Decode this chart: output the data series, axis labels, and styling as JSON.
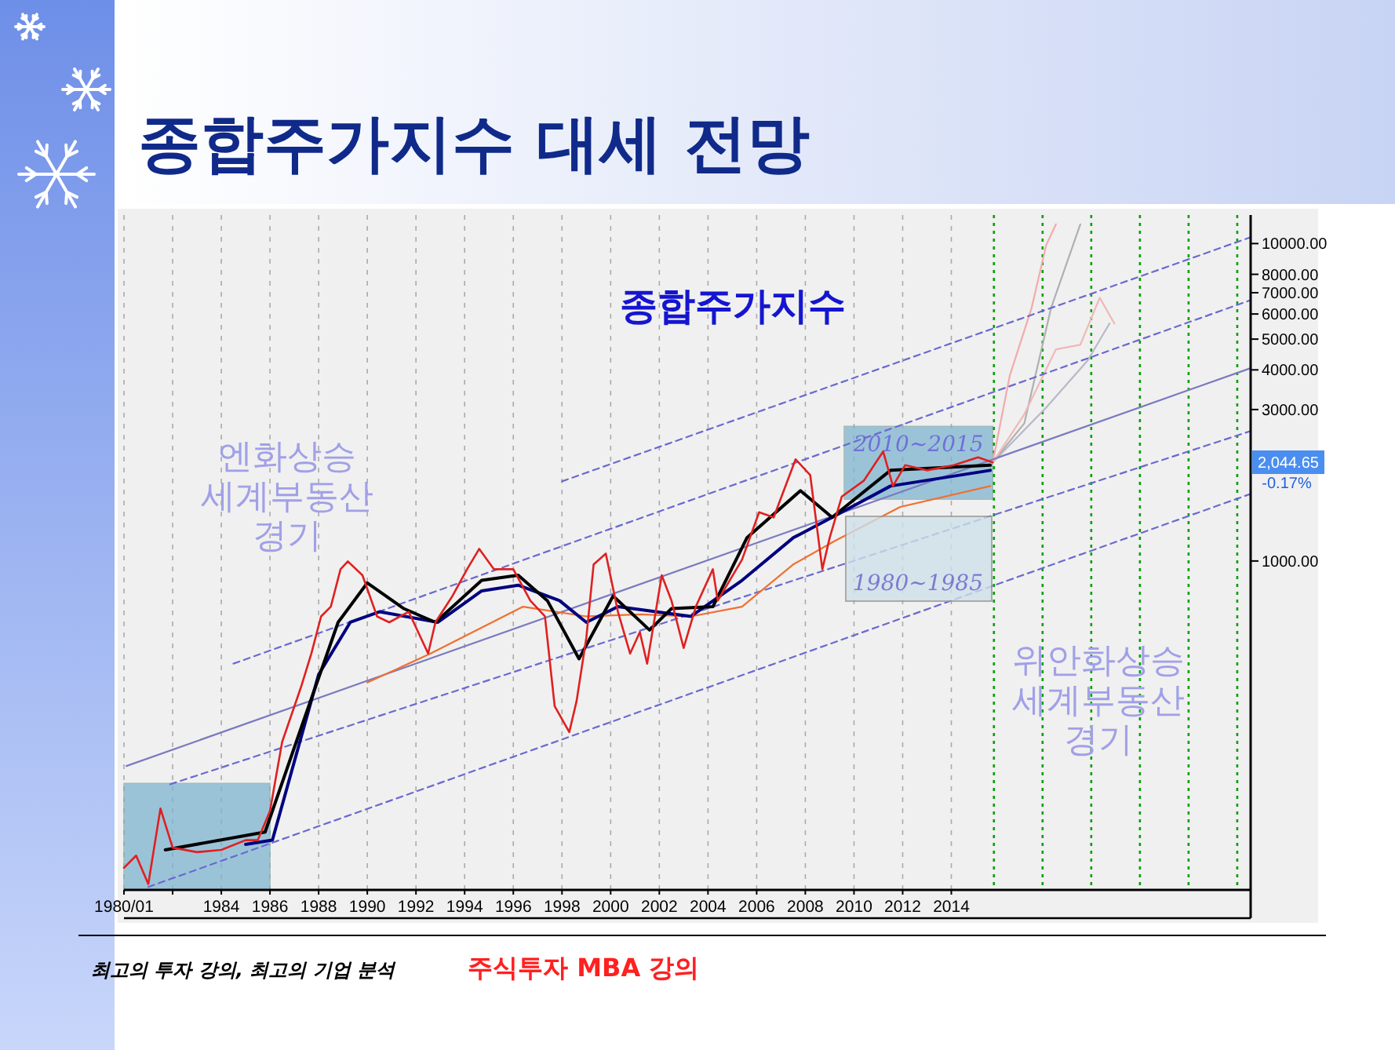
{
  "chart_data": {
    "type": "line",
    "title": "종합주가지수 대세 전망",
    "xlim": [
      1980,
      2026.3
    ],
    "ylim": [
      92,
      12300
    ],
    "log": "y",
    "grid": "x",
    "xticks": [
      {
        "value": 1980,
        "label": "1980/01"
      },
      {
        "value": 1982,
        "label": null
      },
      1984,
      1986,
      1988,
      1990,
      1992,
      1994,
      1996,
      1998,
      2000,
      2002,
      2004,
      2006,
      2008,
      2010,
      2012,
      2014
    ],
    "yticks": [
      {
        "value": 1000,
        "label": "1000.00"
      },
      {
        "value": 3000,
        "label": "3000.00"
      },
      {
        "value": 4000,
        "label": "4000.00"
      },
      {
        "value": 5000,
        "label": "5000.00"
      },
      {
        "value": 6000,
        "label": "6000.00"
      },
      {
        "value": 7000,
        "label": "7000.00"
      },
      {
        "value": 8000,
        "label": "8000.00"
      },
      {
        "value": 10000,
        "label": "10000.00"
      }
    ],
    "series": [
      {
        "color": "#e02020",
        "x": [
          1980.0,
          1980.5,
          1981.0,
          1981.5,
          1982.0,
          1983.0,
          1984.0,
          1985.0,
          1985.5,
          1986.0,
          1986.5,
          1987.3,
          1987.7,
          1988.1,
          1988.5,
          1988.9,
          1989.2,
          1989.8,
          1990.4,
          1990.9,
          1991.7,
          1992.5,
          1992.8,
          1993.5,
          1994.1,
          1994.6,
          1995.2,
          1996.0,
          1996.7,
          1997.3,
          1997.7,
          1998.3,
          1998.6,
          1999.0,
          1999.3,
          1999.8,
          2000.3,
          2000.8,
          2001.2,
          2001.5,
          2002.1,
          2002.5,
          2003.0,
          2003.5,
          2004.2,
          2004.4,
          2005.4,
          2006.1,
          2006.7,
          2007.6,
          2008.2,
          2008.7,
          2009.0,
          2009.5,
          2010.4,
          2011.2,
          2011.6,
          2012.1,
          2013.0,
          2014.1,
          2015.1,
          2015.7
        ],
        "values": [
          108,
          118,
          96,
          166,
          125,
          121,
          123,
          132,
          132,
          163,
          269,
          406,
          511,
          669,
          718,
          942,
          997,
          902,
          669,
          641,
          692,
          511,
          641,
          776,
          942,
          1092,
          942,
          942,
          750,
          669,
          349,
          289,
          362,
          572,
          975,
          1055,
          692,
          511,
          597,
          475,
          902,
          750,
          532,
          718,
          942,
          750,
          1010,
          1424,
          1372,
          2091,
          1866,
          942,
          1183,
          1596,
          1789,
          2213,
          1722,
          2003,
          1930,
          2003,
          2122,
          2044.65
        ]
      },
      {
        "color": "#000000",
        "x": [
          1981.7,
          1985.8,
          1987.3,
          1988.8,
          1990.0,
          1991.5,
          1992.8,
          1994.7,
          1996.2,
          1997.4,
          1998.7,
          2000.1,
          2001.6,
          2002.5,
          2004.2,
          2005.6,
          2007.8,
          2009.1,
          2011.5,
          2015.6
        ],
        "values": [
          123,
          140,
          301,
          641,
          853,
          708,
          641,
          869,
          902,
          750,
          492,
          776,
          606,
          708,
          718,
          1183,
          1665,
          1372,
          1930,
          2003
        ]
      },
      {
        "color": "#000080",
        "x": [
          1985.0,
          1986.1,
          1988.0,
          1989.3,
          1990.5,
          1992.9,
          1994.7,
          1996.2,
          1997.9,
          1999.0,
          2000.3,
          2003.3,
          2005.4,
          2007.5,
          2009.1,
          2011.5,
          2015.6
        ],
        "values": [
          128,
          132,
          439,
          641,
          692,
          641,
          805,
          839,
          750,
          641,
          718,
          669,
          869,
          1183,
          1372,
          1722,
          1930
        ]
      },
      {
        "color": "#f07030",
        "x": [
          1990.0,
          1992.6,
          1994.7,
          1996.4,
          1999.0,
          2001.2,
          2003.3,
          2005.4,
          2007.5,
          2009.2,
          2011.9,
          2015.6
        ],
        "values": [
          414,
          511,
          617,
          718,
          669,
          679,
          669,
          718,
          975,
          1155,
          1480,
          1722
        ]
      },
      {
        "type": "line",
        "color": "#6a6ad0",
        "line_style": "dashed",
        "x": [
          1998.0,
          2026.3
        ],
        "values": [
          1782,
          10470
        ]
      },
      {
        "type": "line",
        "color": "#6a6ad0",
        "line_style": "dashed",
        "x": [
          1984.5,
          2026.3
        ],
        "values": [
          475,
          6635
        ]
      },
      {
        "type": "line",
        "color": "#7a7ac0",
        "line_style": "solid",
        "x": [
          1980.1,
          2026.3
        ],
        "values": [
          226,
          4050
        ]
      },
      {
        "type": "line",
        "color": "#6a6ad0",
        "line_style": "dashed",
        "x": [
          1981.9,
          2026.3
        ],
        "values": [
          198,
          2566
        ]
      },
      {
        "type": "line",
        "color": "#6a6ad0",
        "line_style": "dashed",
        "x": [
          1981.0,
          2026.3
        ],
        "values": [
          94,
          1627
        ]
      },
      {
        "type": "line",
        "color": "#f4aaaa",
        "x": [
          2015.7,
          2016.4,
          2017.3,
          2017.9,
          2018.3
        ],
        "values": [
          2044.65,
          3830,
          6270,
          9900,
          11500
        ]
      },
      {
        "type": "line",
        "color": "#f0b8b8",
        "x": [
          2015.7,
          2017.0,
          2018.3,
          2019.3,
          2020.1,
          2020.7
        ],
        "values": [
          2044.65,
          2900,
          4645,
          4800,
          6750,
          5600
        ]
      },
      {
        "type": "line",
        "color": "#b0b0b0",
        "x": [
          2015.7,
          2017.0,
          2018.1,
          2019.3
        ],
        "values": [
          2044.65,
          2716,
          6270,
          11500
        ]
      },
      {
        "type": "line",
        "color": "#b8b8c8",
        "x": [
          2015.7,
          2017.9,
          2019.6,
          2020.5
        ],
        "values": [
          2044.65,
          3044,
          4280,
          5600
        ]
      }
    ],
    "ref_lines": [
      {
        "axis": "x",
        "value": 2015.75,
        "color": "#00a000",
        "line_style": "dotted"
      },
      {
        "axis": "x",
        "value": 2017.75,
        "color": "#00a000",
        "line_style": "dotted"
      },
      {
        "axis": "x",
        "value": 2019.75,
        "color": "#00a000",
        "line_style": "dotted"
      },
      {
        "axis": "x",
        "value": 2021.75,
        "color": "#00a000",
        "line_style": "dotted"
      },
      {
        "axis": "x",
        "value": 2023.75,
        "color": "#00a000",
        "line_style": "dotted"
      },
      {
        "axis": "x",
        "value": 2025.75,
        "color": "#00a000",
        "line_style": "dotted"
      }
    ],
    "bands": [
      {
        "axis": "x",
        "from": 1980,
        "to": 1986,
        "color": "#7fb4d0"
      },
      {
        "axis": "x",
        "from": 2009.6,
        "to": 2015.7,
        "color": "#7fb4d0",
        "label": "2010~2015"
      }
    ],
    "annotations": [
      "종합주가지수",
      "엔화상승\n세계부동산\n경기",
      "위안화상승\n세계부동산\n경기",
      "1980~1985",
      "2,044.65",
      "-0.17%",
      "최고의 투자 강의, 최고의 기업 분석",
      "주식투자 MBA 강의"
    ]
  }
}
